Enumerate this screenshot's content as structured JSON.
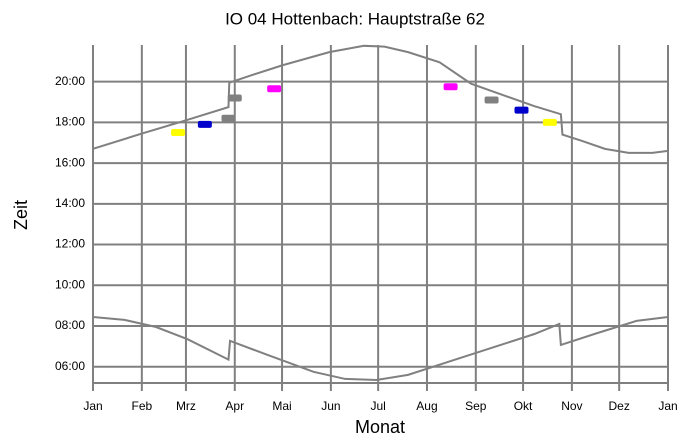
{
  "chart_data": {
    "type": "line",
    "title": "IO 04 Hottenbach: Hauptstraße 62",
    "xlabel": "Monat",
    "ylabel": "Zeit",
    "xlim": [
      0,
      365
    ],
    "xticks": [
      {
        "value": 0,
        "label": "Jan"
      },
      {
        "value": 31,
        "label": "Feb"
      },
      {
        "value": 59,
        "label": "Mrz"
      },
      {
        "value": 90,
        "label": "Apr"
      },
      {
        "value": 120,
        "label": "Mai"
      },
      {
        "value": 151,
        "label": "Jun"
      },
      {
        "value": 181,
        "label": "Jul"
      },
      {
        "value": 212,
        "label": "Aug"
      },
      {
        "value": 243,
        "label": "Sep"
      },
      {
        "value": 273,
        "label": "Okt"
      },
      {
        "value": 304,
        "label": "Nov"
      },
      {
        "value": 334,
        "label": "Dez"
      },
      {
        "value": 365,
        "label": "Jan"
      }
    ],
    "ylim": [
      5.2,
      21.8
    ],
    "yticks": [
      {
        "value": 6,
        "label": "06:00"
      },
      {
        "value": 8,
        "label": "08:00"
      },
      {
        "value": 10,
        "label": "10:00"
      },
      {
        "value": 12,
        "label": "12:00"
      },
      {
        "value": 14,
        "label": "14:00"
      },
      {
        "value": 16,
        "label": "16:00"
      },
      {
        "value": 18,
        "label": "18:00"
      },
      {
        "value": 20,
        "label": "20:00"
      }
    ],
    "grid": true,
    "series": [
      {
        "color": "#808080",
        "x": [
          0,
          31,
          59,
          86,
          86.5,
          100,
          120,
          150,
          172,
          185,
          200,
          220,
          240,
          260,
          280,
          297,
          298,
          310,
          325,
          340,
          355,
          365
        ],
        "values": [
          16.7,
          17.45,
          18.1,
          18.75,
          19.95,
          20.3,
          20.8,
          21.45,
          21.76,
          21.72,
          21.45,
          20.95,
          19.9,
          19.35,
          18.8,
          18.4,
          17.4,
          17.1,
          16.7,
          16.5,
          16.5,
          16.6
        ]
      },
      {
        "color": "#808080",
        "x": [
          0,
          20,
          40,
          60,
          86,
          87,
          110,
          140,
          160,
          180,
          200,
          230,
          260,
          280,
          296,
          297,
          320,
          345,
          365
        ],
        "values": [
          8.44,
          8.3,
          7.95,
          7.35,
          6.35,
          7.27,
          6.6,
          5.75,
          5.4,
          5.35,
          5.6,
          6.35,
          7.1,
          7.6,
          8.1,
          7.07,
          7.65,
          8.25,
          8.44
        ]
      }
    ],
    "markers": [
      {
        "x": 54,
        "y": 17.5,
        "color": "#ffff00"
      },
      {
        "x": 71,
        "y": 17.9,
        "color": "#0000cc"
      },
      {
        "x": 86,
        "y": 18.2,
        "color": "#808080"
      },
      {
        "x": 90,
        "y": 19.2,
        "color": "#808080"
      },
      {
        "x": 115,
        "y": 19.65,
        "color": "#ff00ff"
      },
      {
        "x": 227,
        "y": 19.75,
        "color": "#ff00ff"
      },
      {
        "x": 253,
        "y": 19.1,
        "color": "#808080"
      },
      {
        "x": 272,
        "y": 18.6,
        "color": "#0000cc"
      },
      {
        "x": 290,
        "y": 18.0,
        "color": "#ffff00"
      }
    ]
  }
}
